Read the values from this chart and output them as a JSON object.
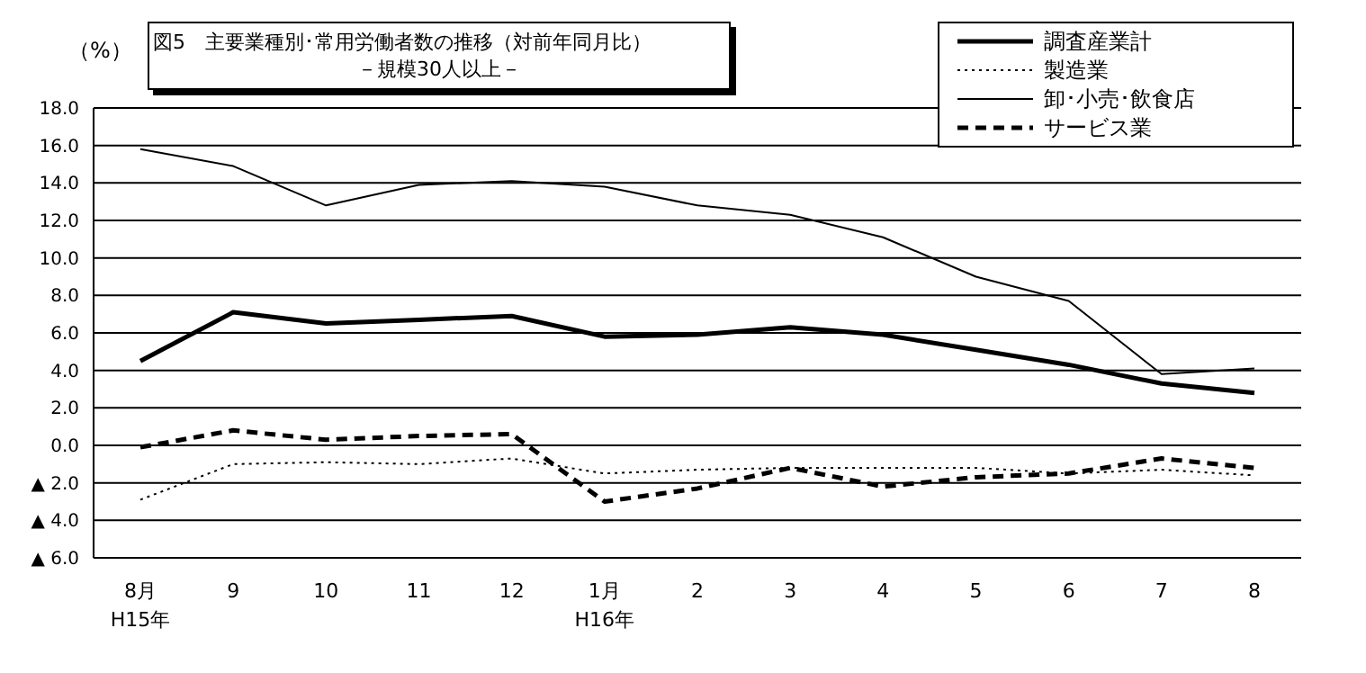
{
  "chart_data": {
    "type": "line",
    "title": "図5　主要業種別･常用労働者数の推移（対前年同月比）",
    "subtitle": "－規模30人以上－",
    "ylabel": "（%）",
    "categories": [
      "8月\nH15年",
      "9",
      "10",
      "11",
      "12",
      "1月\nH16年",
      "2",
      "3",
      "4",
      "5",
      "6",
      "7",
      "8"
    ],
    "series": [
      {
        "name": "調査産業計",
        "color": "#000000",
        "line_style": "solid",
        "values": [
          4.5,
          7.1,
          6.5,
          6.7,
          6.9,
          5.8,
          5.9,
          6.3,
          5.9,
          5.1,
          4.3,
          3.3,
          2.8
        ]
      },
      {
        "name": "製造業",
        "color": "#000000",
        "line_style": "dotted",
        "values": [
          -2.9,
          -1.0,
          -0.9,
          -1.0,
          -0.7,
          -1.5,
          -1.3,
          -1.2,
          -1.2,
          -1.2,
          -1.5,
          -1.3,
          -1.6
        ]
      },
      {
        "name": "卸･小売･飲食店",
        "color": "#000000",
        "line_style": "solid",
        "values": [
          15.8,
          14.9,
          12.8,
          13.9,
          14.1,
          13.8,
          12.8,
          12.3,
          11.1,
          9.0,
          7.7,
          3.8,
          4.1
        ]
      },
      {
        "name": "サービス業",
        "color": "#000000",
        "line_style": "dashed",
        "values": [
          -0.1,
          0.8,
          0.3,
          0.5,
          0.6,
          -3.0,
          -2.3,
          -1.2,
          -2.2,
          -1.7,
          -1.5,
          -0.7,
          -1.2
        ]
      }
    ],
    "ylim": [
      -6,
      18
    ],
    "yticks": [
      {
        "value": -6,
        "label": "▲ 6.0"
      },
      {
        "value": -4,
        "label": "▲ 4.0"
      },
      {
        "value": -2,
        "label": "▲ 2.0"
      },
      {
        "value": 0,
        "label": "0.0"
      },
      {
        "value": 2,
        "label": "2.0"
      },
      {
        "value": 4,
        "label": "4.0"
      },
      {
        "value": 6,
        "label": "6.0"
      },
      {
        "value": 8,
        "label": "8.0"
      },
      {
        "value": 10,
        "label": "10.0"
      },
      {
        "value": 12,
        "label": "12.0"
      },
      {
        "value": 14,
        "label": "14.0"
      },
      {
        "value": 16,
        "label": "16.0"
      },
      {
        "value": 18,
        "label": "18.0"
      }
    ],
    "grid": "y",
    "legend": "top right",
    "marker": "none"
  }
}
